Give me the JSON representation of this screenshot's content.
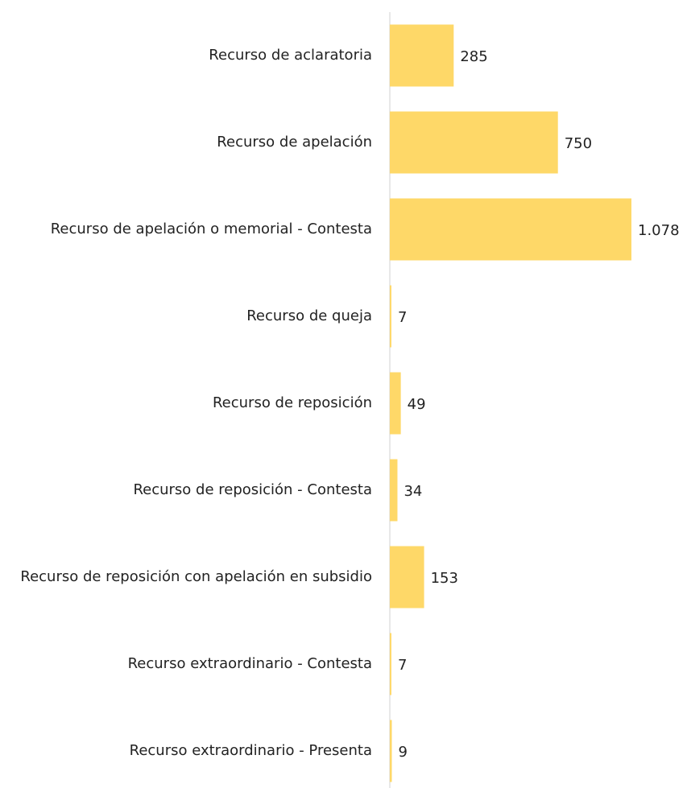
{
  "chart_data": {
    "type": "bar",
    "orientation": "horizontal",
    "categories": [
      "Recurso de aclaratoria",
      "Recurso de apelación",
      "Recurso de apelación o memorial - Contesta",
      "Recurso de queja",
      "Recurso de reposición",
      "Recurso de reposición - Contesta",
      "Recurso de reposición con apelación en subsidio",
      "Recurso extraordinario - Contesta",
      "Recurso extraordinario - Presenta"
    ],
    "values": [
      285,
      750,
      1078,
      7,
      49,
      34,
      153,
      7,
      9
    ],
    "value_labels": [
      "285",
      "750",
      "1.078",
      "7",
      "49",
      "34",
      "153",
      "7",
      "9"
    ],
    "color": "#fed868"
  }
}
